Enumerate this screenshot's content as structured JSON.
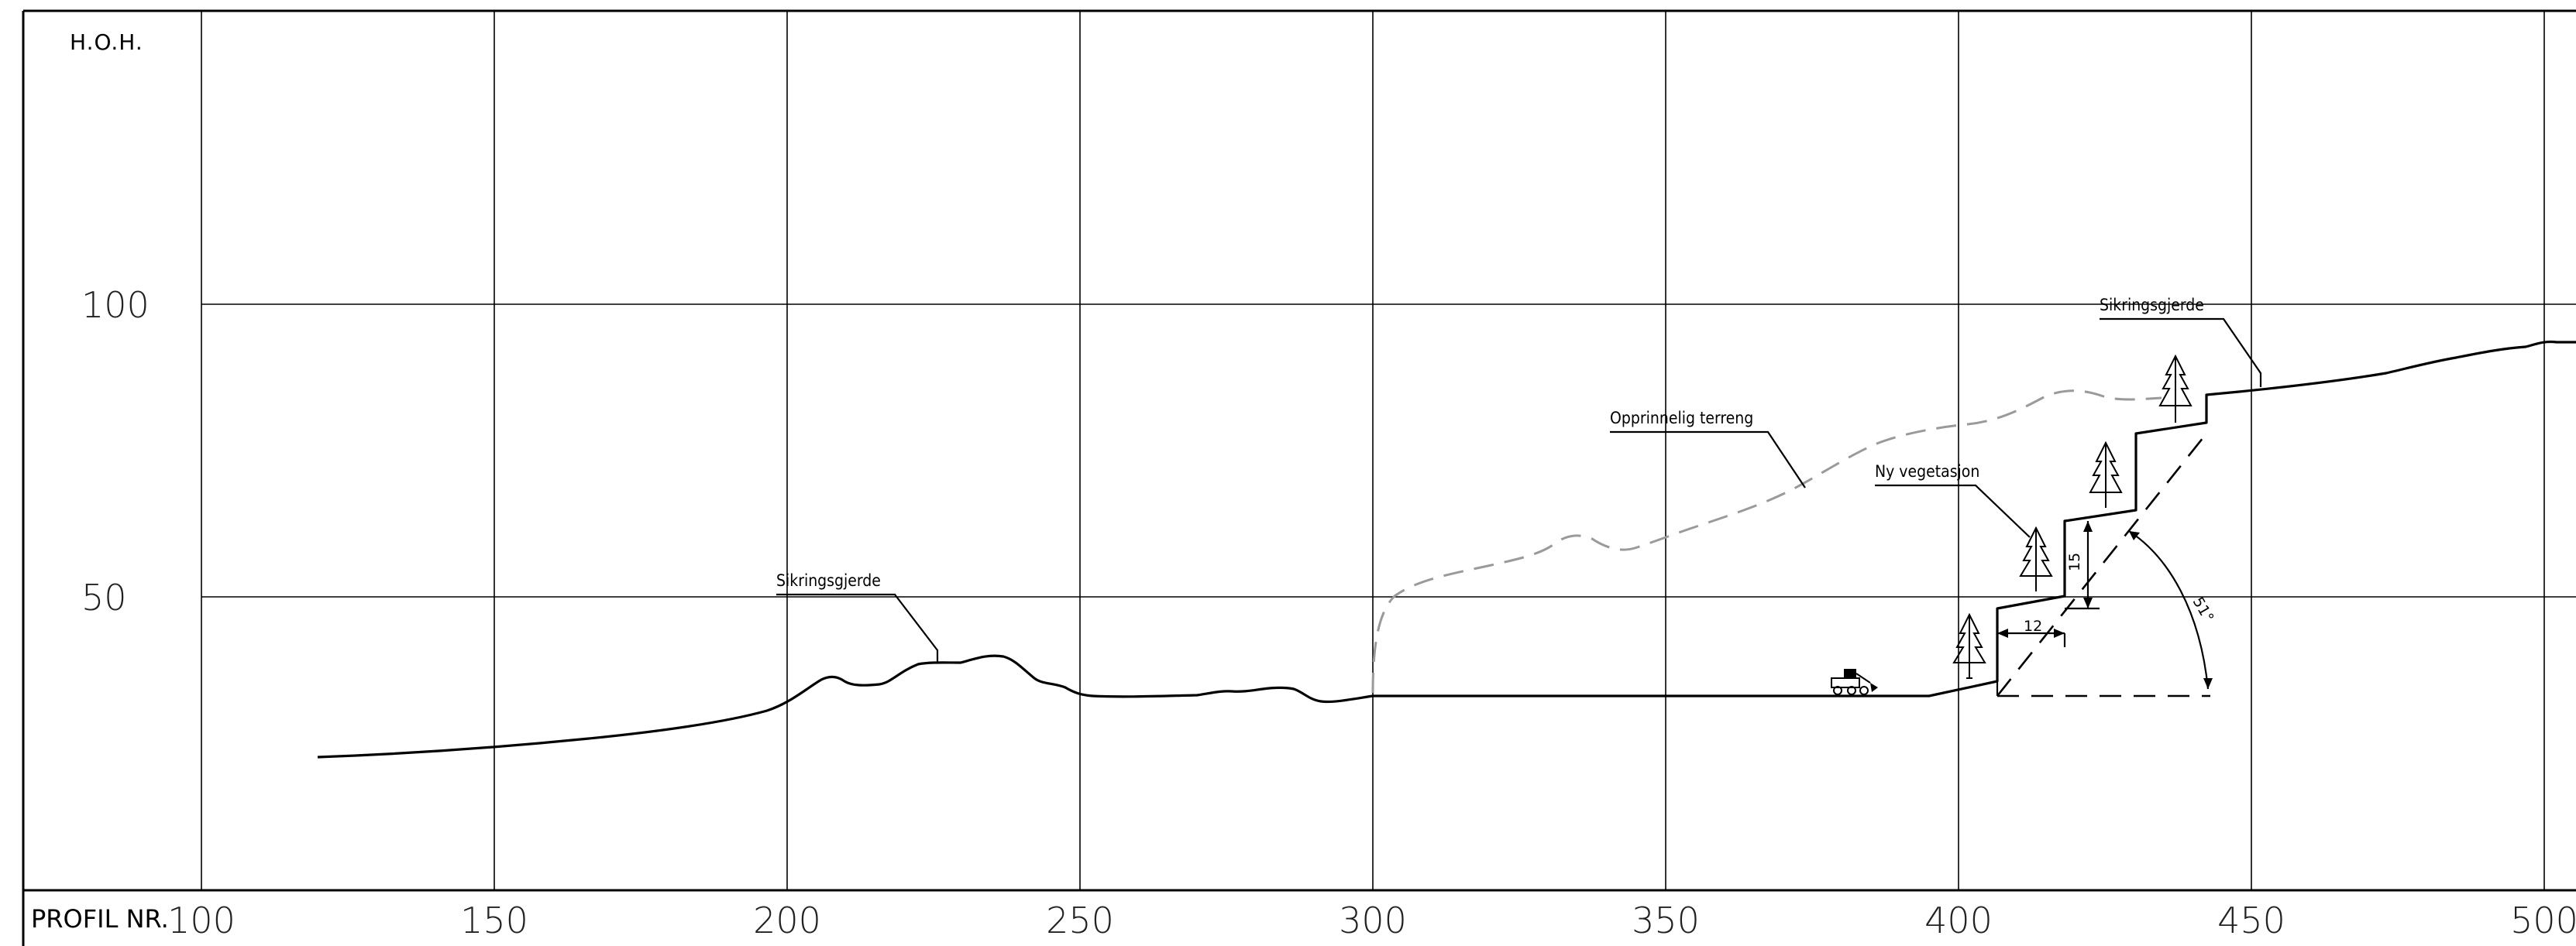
{
  "axis": {
    "y_title": "H.O.H.",
    "x_title": "PROFIL NR.",
    "y_ticks": [
      "100",
      "50"
    ],
    "x_ticks": [
      "100",
      "150",
      "200",
      "250",
      "300",
      "350",
      "400",
      "450",
      "500"
    ]
  },
  "labels": {
    "sikring_left": "Sikringsgjerde",
    "sikring_right": "Sikringsgjerde",
    "opprinnelig": "Opprinnelig terreng",
    "ny_vegetasjon": "Ny vegetasjon"
  },
  "dimensions": {
    "bench_width": "12",
    "bench_height": "15",
    "slope_angle": "51°"
  }
}
